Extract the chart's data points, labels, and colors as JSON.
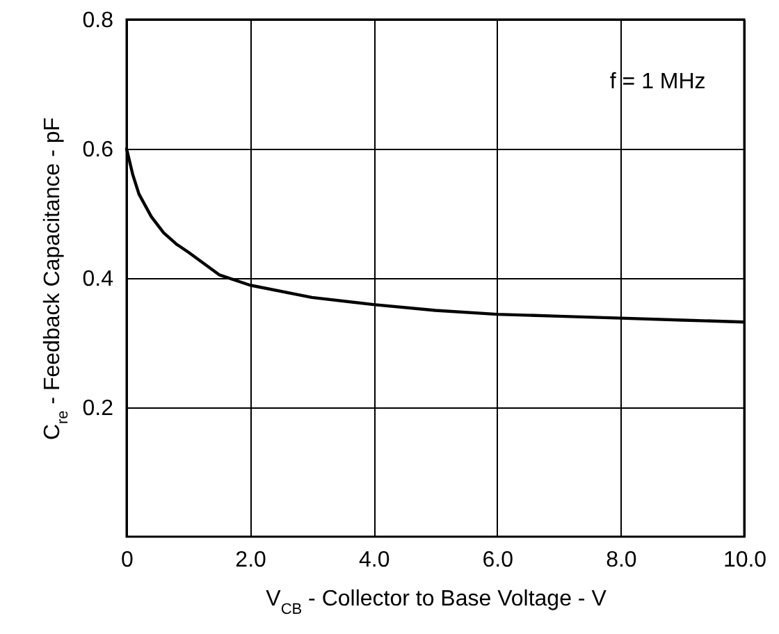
{
  "chart_data": {
    "type": "line",
    "xlabel": "V$_{CB}$ - Collector to Base Voltage - V",
    "ylabel": "C$_{re}$ - Feedback Capacitance - pF",
    "annotations": [
      "f = 1 MHz"
    ],
    "x": [
      0,
      0.1,
      0.2,
      0.4,
      0.6,
      0.8,
      1.0,
      1.5,
      2,
      3,
      4,
      5,
      6,
      7,
      8,
      9,
      10
    ],
    "series": [
      {
        "color": "#000000",
        "values": [
          0.6,
          0.56,
          0.53,
          0.495,
          0.47,
          0.453,
          0.44,
          0.405,
          0.389,
          0.37,
          0.359,
          0.35,
          0.344,
          0.341,
          0.338,
          0.335,
          0.332
        ]
      }
    ],
    "xlim": [
      0,
      10
    ],
    "xticks": [
      0,
      {
        "value": 2,
        "label": "2.0"
      },
      {
        "value": 4,
        "label": "4.0"
      },
      {
        "value": 6,
        "label": "6.0"
      },
      {
        "value": 8,
        "label": "8.0"
      },
      {
        "value": 10,
        "label": "10.0"
      }
    ],
    "ylim": [
      0,
      0.8
    ],
    "yticks": [
      0.2,
      0.4,
      0.6,
      0.8
    ],
    "grid": true,
    "marker": "none",
    "line_style": "solid"
  }
}
